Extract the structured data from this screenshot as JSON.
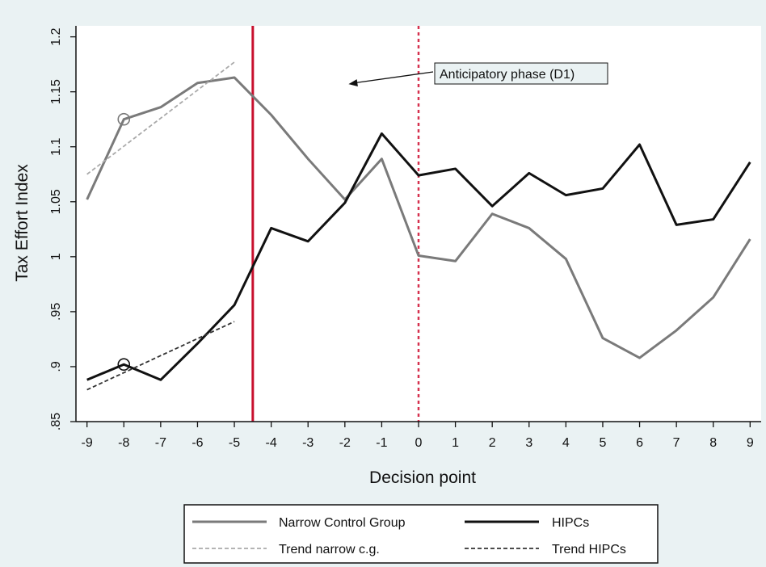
{
  "chart_data": {
    "type": "line",
    "xlabel": "Decision point",
    "ylabel": "Tax Effort Index",
    "x": [
      -9,
      -8,
      -7,
      -6,
      -5,
      -4,
      -3,
      -2,
      -1,
      0,
      1,
      2,
      3,
      4,
      5,
      6,
      7,
      8,
      9
    ],
    "xlim": [
      -9.3,
      9.3
    ],
    "ylim": [
      0.85,
      1.21
    ],
    "yticks": [
      ".85",
      ".9",
      ".95",
      "1",
      "1.05",
      "1.1",
      "1.15",
      "1.2"
    ],
    "series": [
      {
        "name": "Narrow Control Group",
        "color": "#7a7a7a",
        "style": "solid",
        "values": [
          1.052,
          1.125,
          1.136,
          1.158,
          1.163,
          1.129,
          1.089,
          1.052,
          1.089,
          1.001,
          0.996,
          1.039,
          1.026,
          0.998,
          0.926,
          0.908,
          0.933,
          0.963,
          1.016
        ]
      },
      {
        "name": "HIPCs",
        "color": "#111111",
        "style": "solid",
        "values": [
          0.888,
          0.902,
          0.888,
          0.921,
          0.956,
          1.026,
          1.014,
          1.049,
          1.112,
          1.074,
          1.08,
          1.046,
          1.076,
          1.056,
          1.062,
          1.102,
          1.029,
          1.034,
          1.086
        ]
      },
      {
        "name": "Trend narrow c.g.",
        "color": "#aaaaaa",
        "style": "dashed",
        "x": [
          -9,
          -5
        ],
        "values": [
          1.075,
          1.177
        ]
      },
      {
        "name": "Trend HIPCs",
        "color": "#333333",
        "style": "dashed",
        "x": [
          -9,
          -5
        ],
        "values": [
          0.879,
          0.941
        ]
      }
    ],
    "circle_markers": [
      {
        "x": -8,
        "y": 1.125,
        "color": "#7a7a7a"
      },
      {
        "x": -8,
        "y": 0.902,
        "color": "#111111"
      }
    ],
    "vertical_lines": [
      {
        "x": -4.5,
        "color": "#c8102e",
        "style": "solid"
      },
      {
        "x": 0,
        "color": "#d6314f",
        "style": "dotted"
      }
    ],
    "annotation": {
      "text": "Anticipatory phase (D1)",
      "arrow_to_x": -1.9,
      "arrow_to_y": 1.157
    },
    "legend": {
      "placement": "bottom",
      "entries": [
        "Narrow Control Group",
        "HIPCs",
        "Trend narrow c.g.",
        "Trend HIPCs"
      ]
    },
    "grid": false
  }
}
